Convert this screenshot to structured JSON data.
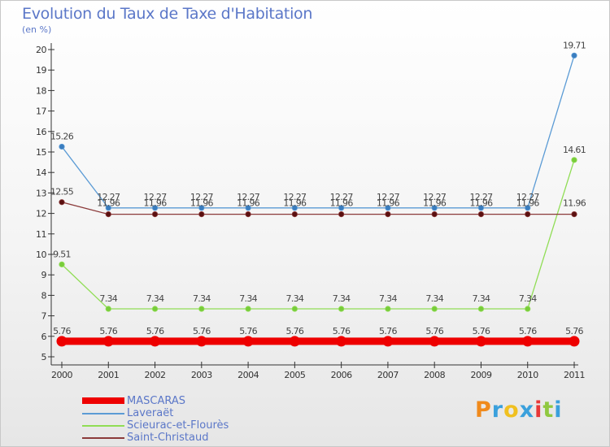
{
  "chart_data": {
    "type": "line",
    "title": "Evolution du Taux de Taxe d'Habitation",
    "subtitle": "(en %)",
    "x": [
      "2000",
      "2001",
      "2002",
      "2003",
      "2004",
      "2005",
      "2006",
      "2007",
      "2008",
      "2009",
      "2010",
      "2011"
    ],
    "ylim": [
      5,
      20
    ],
    "yticks": [
      5,
      6,
      7,
      8,
      9,
      10,
      11,
      12,
      13,
      14,
      15,
      16,
      17,
      18,
      19,
      20
    ],
    "grid": false,
    "series": [
      {
        "name": "MASCARAS",
        "color": "#ee0000",
        "thick": true,
        "values": [
          5.76,
          5.76,
          5.76,
          5.76,
          5.76,
          5.76,
          5.76,
          5.76,
          5.76,
          5.76,
          5.76,
          5.76
        ],
        "labels": [
          "5.76",
          "5.76",
          "5.76",
          "5.76",
          "5.76",
          "5.76",
          "5.76",
          "5.76",
          "5.76",
          "5.76",
          "5.76",
          "5.76"
        ]
      },
      {
        "name": "Laveraët",
        "color": "#5b9bd5",
        "dot": "#3a7dbf",
        "thick": false,
        "values": [
          15.26,
          12.27,
          12.27,
          12.27,
          12.27,
          12.27,
          12.27,
          12.27,
          12.27,
          12.27,
          12.27,
          19.71
        ],
        "labels": [
          "15.26",
          "12.27",
          "12.27",
          "12.27",
          "12.27",
          "12.27",
          "12.27",
          "12.27",
          "12.27",
          "12.27",
          "12.27",
          "19.71"
        ]
      },
      {
        "name": "Scieurac-et-Flourès",
        "color": "#90dd55",
        "dot": "#78cc3a",
        "thick": false,
        "values": [
          9.51,
          7.34,
          7.34,
          7.34,
          7.34,
          7.34,
          7.34,
          7.34,
          7.34,
          7.34,
          7.34,
          14.61
        ],
        "labels": [
          "9.51",
          "7.34",
          "7.34",
          "7.34",
          "7.34",
          "7.34",
          "7.34",
          "7.34",
          "7.34",
          "7.34",
          "7.34",
          "14.61"
        ]
      },
      {
        "name": "Saint-Christaud",
        "color": "#8b3a3a",
        "dot": "#5a1010",
        "thick": false,
        "values": [
          12.55,
          11.96,
          11.96,
          11.96,
          11.96,
          11.96,
          11.96,
          11.96,
          11.96,
          11.96,
          11.96,
          11.96
        ],
        "labels": [
          "12.55",
          "11.96",
          "11.96",
          "11.96",
          "11.96",
          "11.96",
          "11.96",
          "11.96",
          "11.96",
          "11.96",
          "11.96",
          "11.96"
        ]
      }
    ]
  },
  "logo": {
    "text": "Proxiti",
    "colors": [
      "#f08a1c",
      "#3aa0dc",
      "#f0c020",
      "#3aa0dc",
      "#e83838",
      "#90c840",
      "#3aa0dc"
    ]
  }
}
